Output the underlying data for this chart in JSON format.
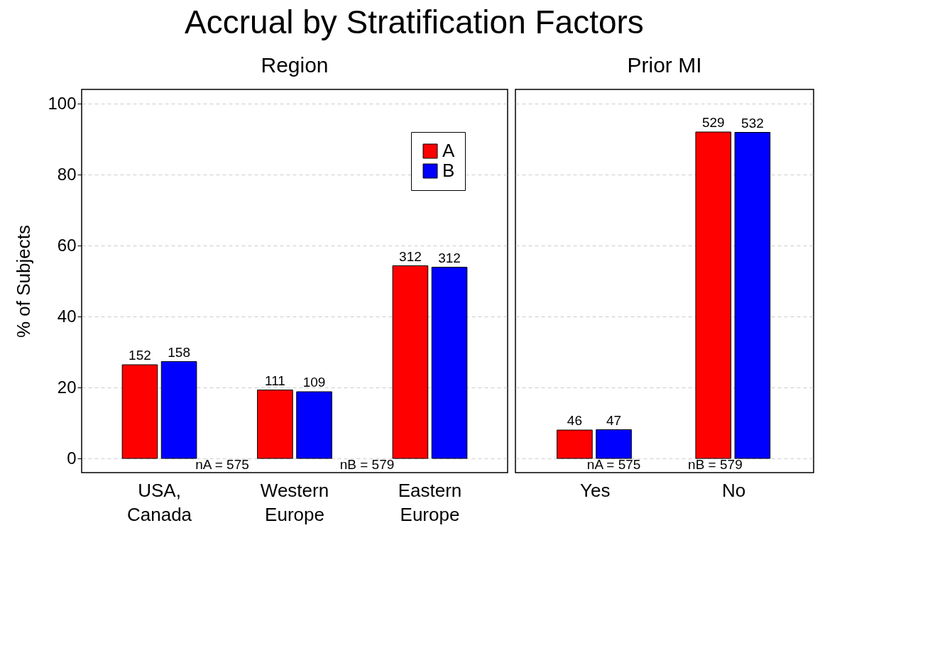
{
  "chart_data": [
    {
      "type": "bar",
      "title": "Accrual by Stratification Factors",
      "subtitle": "Region",
      "ylabel": "% of Subjects",
      "categories": [
        "USA, Canada",
        "Western Europe",
        "Eastern Europe"
      ],
      "series": [
        {
          "name": "A",
          "color": "#ff0000",
          "values": [
            26.4,
            19.3,
            54.3
          ]
        },
        {
          "name": "B",
          "color": "#0000ff",
          "values": [
            27.3,
            18.8,
            53.9
          ]
        }
      ],
      "ylim": [
        -4,
        104
      ],
      "yticks": [
        0,
        20,
        40,
        60,
        80,
        100
      ],
      "grid": "y",
      "legend": "top right",
      "annotations": [
        {
          "text": "152",
          "x": "USA, Canada",
          "y": 26.4
        },
        {
          "text": "158",
          "x": "USA, Canada",
          "y": 27.3
        },
        {
          "text": "111",
          "x": "Western Europe",
          "y": 19.3
        },
        {
          "text": "109",
          "x": "Western Europe",
          "y": 18.8
        },
        {
          "text": "312",
          "x": "Eastern Europe",
          "y": 54.3
        },
        {
          "text": "312",
          "x": "Eastern Europe",
          "y": 53.9
        },
        "nA = 575",
        "nB = 579"
      ]
    },
    {
      "type": "bar",
      "subtitle": "Prior MI",
      "categories": [
        "Yes",
        "No"
      ],
      "series": [
        {
          "color": "#ff0000",
          "values": [
            8.0,
            92.0
          ]
        },
        {
          "color": "#0000ff",
          "values": [
            8.1,
            91.9
          ]
        }
      ],
      "ylim": [
        -4,
        104
      ],
      "yticks": [
        0,
        20,
        40,
        60,
        80,
        100
      ],
      "grid": "y",
      "tick_labels": "x",
      "annotations": [
        {
          "text": "46",
          "x": "Yes",
          "y": 8.0
        },
        {
          "text": "47",
          "x": "Yes",
          "y": 8.1
        },
        {
          "text": "529",
          "x": "No",
          "y": 92.0
        },
        {
          "text": "532",
          "x": "No",
          "y": 91.9
        },
        "nA = 575",
        "nB = 579"
      ]
    }
  ]
}
